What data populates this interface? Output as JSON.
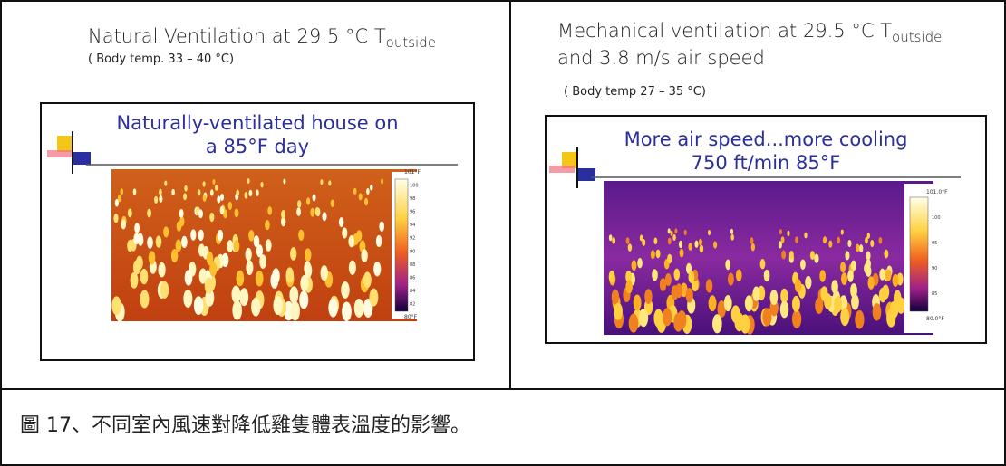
{
  "left": {
    "title": "Natural Ventilation at 29.5 °C T",
    "title_sub": "outside",
    "subtitle": "( Body temp. 33 – 40 °C)",
    "slide_title": [
      "Naturally-ventilated house on",
      "a 85°F day"
    ],
    "scale_labels": [
      "101°F",
      "100",
      "98",
      "96",
      "94",
      "92",
      "90",
      "88",
      "86",
      "84",
      "82",
      "80°F"
    ]
  },
  "right": {
    "title": "Mechanical ventilation at 29.5 °C T",
    "title_sub": "outside",
    "title_line2": "and 3.8 m/s air speed",
    "subtitle": "( Body temp 27 – 35 °C)",
    "slide_title": [
      "More air speed...more cooling",
      "750 ft/min 85°F"
    ],
    "scale_labels": [
      "101.0°F",
      "100",
      "95",
      "90",
      "85",
      "80.0°F"
    ]
  },
  "caption": "圖 17、不同室內風速對降低雞隻體表溫度的影響。"
}
